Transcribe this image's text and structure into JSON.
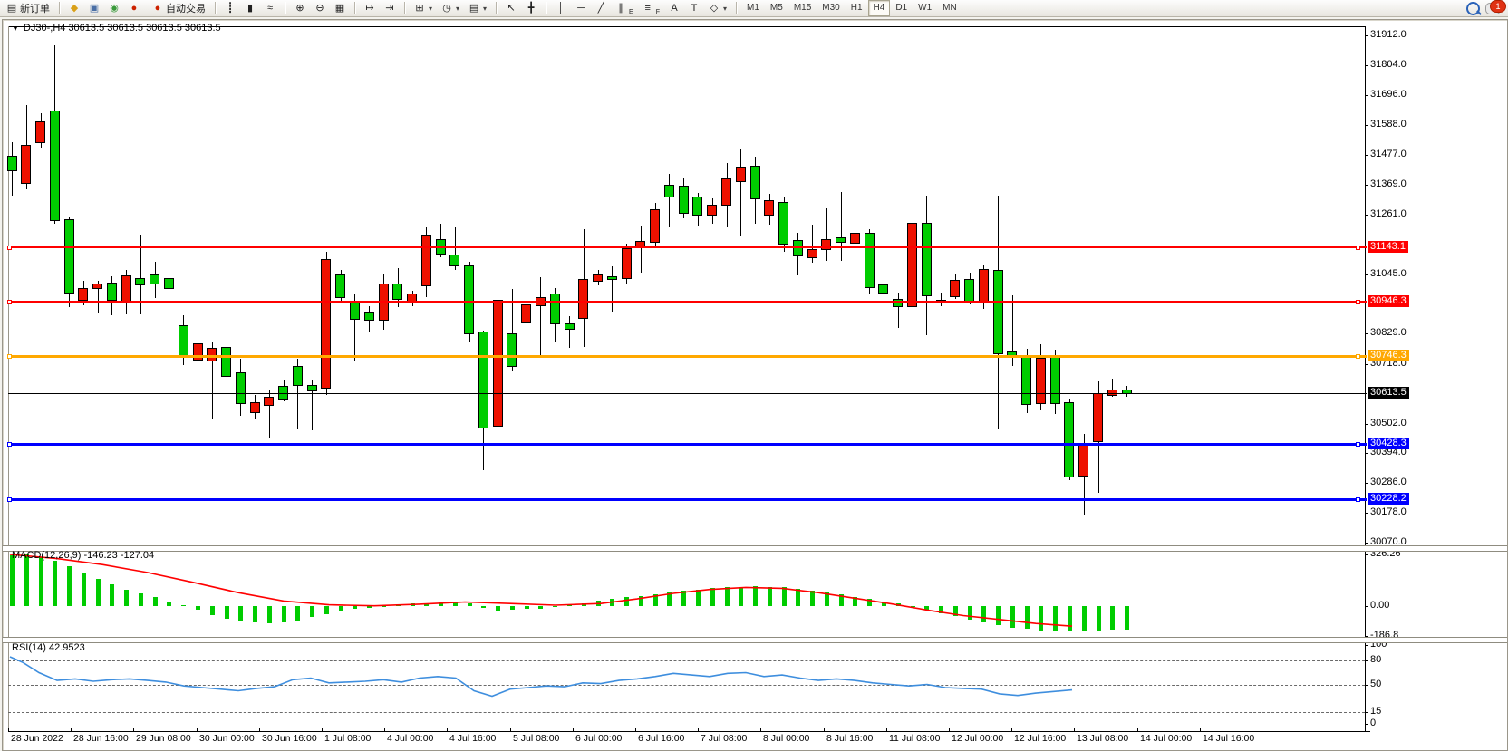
{
  "toolbar": {
    "new_order": {
      "label": "新订单",
      "glyph": "▤"
    },
    "left_icons": [
      {
        "name": "charts-icon",
        "glyph": "◆",
        "color": "#d9a018"
      },
      {
        "name": "profile-icon",
        "glyph": "▣",
        "color": "#4a6fa5"
      },
      {
        "name": "signals-icon",
        "glyph": "◉",
        "color": "#3a9a3a"
      },
      {
        "name": "autotrade-icon",
        "glyph": "●",
        "color": "#cc2200"
      }
    ],
    "autotrade_label": "自动交易",
    "chart_type_tools": [
      {
        "name": "bar-chart-icon",
        "glyph": "┋"
      },
      {
        "name": "candlestick-chart-icon",
        "glyph": "▮"
      },
      {
        "name": "line-chart-icon",
        "glyph": "≈"
      }
    ],
    "zoom_tools": [
      {
        "name": "zoom-in-icon",
        "glyph": "⊕"
      },
      {
        "name": "zoom-out-icon",
        "glyph": "⊖"
      },
      {
        "name": "tile-windows-icon",
        "glyph": "▦"
      }
    ],
    "scroll_tools": [
      {
        "name": "auto-scroll-icon",
        "glyph": "↦"
      },
      {
        "name": "chart-shift-icon",
        "glyph": "⇥"
      }
    ],
    "insert_tools": [
      {
        "name": "indicators-icon",
        "glyph": "⊞",
        "dropdown": true
      },
      {
        "name": "periods-icon",
        "glyph": "◷",
        "dropdown": true
      },
      {
        "name": "templates-icon",
        "glyph": "▤",
        "dropdown": true
      }
    ],
    "cursor_tools": [
      {
        "name": "cursor-icon",
        "glyph": "↖"
      },
      {
        "name": "crosshair-icon",
        "glyph": "╋"
      }
    ],
    "draw_tools": [
      {
        "name": "vertical-line-icon",
        "glyph": "│"
      },
      {
        "name": "horizontal-line-icon",
        "glyph": "─"
      },
      {
        "name": "trendline-icon",
        "glyph": "╱"
      },
      {
        "name": "equidistant-channel-icon",
        "glyph": "∥",
        "sub": "E"
      },
      {
        "name": "fibonacci-icon",
        "glyph": "≡",
        "sub": "F"
      },
      {
        "name": "text-icon",
        "glyph": "A"
      },
      {
        "name": "text-label-icon",
        "glyph": "T"
      },
      {
        "name": "arrows-icon",
        "glyph": "◇",
        "dropdown": true
      }
    ],
    "timeframes": [
      "M1",
      "M5",
      "M15",
      "M30",
      "H1",
      "H4",
      "D1",
      "W1",
      "MN"
    ],
    "active_timeframe": "H4",
    "chat_badge": "1"
  },
  "chart": {
    "symbol_line": "DJ30-,H4  30613.5 30613.5 30613.5 30613.5",
    "macd_label": "MACD(12,26,9) -146.23 -127.04",
    "rsi_label": "RSI(14) 42.9523"
  },
  "chart_data": {
    "type": "candlestick",
    "symbol": "DJ30-",
    "period": "H4",
    "colors": {
      "bull": "#00CD00",
      "bear": "#EE1100",
      "wick": "#000000",
      "hline_red": "#FF0000",
      "hline_orange": "#FFA800",
      "hline_blue": "#0000FF",
      "current_price_line": "#000000",
      "macd_bar": "#00CC00",
      "macd_signal": "#FF0000",
      "rsi_line": "#3E8EDE"
    },
    "price_axis": {
      "min": 30070.0,
      "max": 31912.0,
      "ticks": [
        "31912.0",
        "31804.0",
        "31696.0",
        "31588.0",
        "31477.0",
        "31369.0",
        "31261.0",
        "31045.0",
        "30829.0",
        "30718.0",
        "30502.0",
        "30394.0",
        "30286.0",
        "30178.0",
        "30070.0"
      ],
      "tick_values": [
        31912.0,
        31804.0,
        31696.0,
        31588.0,
        31477.0,
        31369.0,
        31261.0,
        31045.0,
        30829.0,
        30718.0,
        30502.0,
        30394.0,
        30286.0,
        30178.0,
        30070.0
      ]
    },
    "hlines": [
      {
        "price": 31143.1,
        "label": "31143.1",
        "color": "#FF0000",
        "thickness": 2
      },
      {
        "price": 30946.3,
        "label": "30946.3",
        "color": "#FF0000",
        "thickness": 2
      },
      {
        "price": 30746.3,
        "label": "30746.3",
        "color": "#FFA800",
        "thickness": 3
      },
      {
        "price": 30613.5,
        "label": "30613.5",
        "color": "#000000",
        "thickness": 1,
        "current": true
      },
      {
        "price": 30428.3,
        "label": "30428.3",
        "color": "#0000FF",
        "thickness": 3
      },
      {
        "price": 30228.2,
        "label": "30228.2",
        "color": "#0000FF",
        "thickness": 3
      }
    ],
    "candles": [
      [
        "g",
        31475,
        31420,
        31525,
        31330
      ],
      [
        "r",
        31515,
        31375,
        31660,
        31355
      ],
      [
        "r",
        31600,
        31520,
        31630,
        31505
      ],
      [
        "g",
        31640,
        31240,
        31875,
        31228
      ],
      [
        "g",
        31245,
        30975,
        31255,
        30925
      ],
      [
        "r",
        30995,
        30950,
        31020,
        30930
      ],
      [
        "r",
        31010,
        30990,
        31022,
        30902
      ],
      [
        "g",
        31015,
        30950,
        31037,
        30897
      ],
      [
        "r",
        31040,
        30942,
        31060,
        30900
      ],
      [
        "g",
        31030,
        31005,
        31190,
        30902
      ],
      [
        "g",
        31045,
        31010,
        31090,
        30960
      ],
      [
        "g",
        31032,
        30992,
        31062,
        30947
      ],
      [
        "g",
        30860,
        30744,
        30895,
        30715
      ],
      [
        "r",
        30794,
        30731,
        30820,
        30662
      ],
      [
        "r",
        30777,
        30728,
        30800,
        30517
      ],
      [
        "g",
        30781,
        30672,
        30810,
        30590
      ],
      [
        "g",
        30689,
        30573,
        30738,
        30530
      ],
      [
        "r",
        30580,
        30541,
        30607,
        30517
      ],
      [
        "r",
        30600,
        30567,
        30625,
        30452
      ],
      [
        "g",
        30639,
        30590,
        30662,
        30584
      ],
      [
        "g",
        30711,
        30639,
        30738,
        30481
      ],
      [
        "g",
        30642,
        30620,
        30660,
        30480
      ],
      [
        "r",
        31100,
        30630,
        31126,
        30607
      ],
      [
        "g",
        31043,
        30958,
        31060,
        30938
      ],
      [
        "g",
        30942,
        30879,
        30975,
        30728
      ],
      [
        "g",
        30909,
        30876,
        30928,
        30833
      ],
      [
        "r",
        31011,
        30876,
        31043,
        30843
      ],
      [
        "g",
        31011,
        30952,
        31066,
        30925
      ],
      [
        "r",
        30975,
        30945,
        30985,
        30930
      ],
      [
        "r",
        31188,
        31001,
        31215,
        30962
      ],
      [
        "g",
        31172,
        31116,
        31228,
        31106
      ],
      [
        "g",
        31116,
        31073,
        31215,
        31060
      ],
      [
        "g",
        31076,
        30827,
        31090,
        30797
      ],
      [
        "g",
        30836,
        30484,
        30840,
        30333
      ],
      [
        "r",
        30952,
        30491,
        30985,
        30458
      ],
      [
        "g",
        30830,
        30708,
        30991,
        30695
      ],
      [
        "r",
        30936,
        30870,
        31043,
        30843
      ],
      [
        "r",
        30962,
        30928,
        31034,
        30744
      ],
      [
        "g",
        30975,
        30863,
        30995,
        30797
      ],
      [
        "g",
        30866,
        30843,
        30892,
        30777
      ],
      [
        "r",
        31027,
        30882,
        31208,
        30781
      ],
      [
        "r",
        31043,
        31017,
        31060,
        31004
      ],
      [
        "g",
        31037,
        31024,
        31073,
        30909
      ],
      [
        "r",
        31139,
        31027,
        31155,
        31007
      ],
      [
        "r",
        31165,
        31139,
        31221,
        31050
      ],
      [
        "r",
        31280,
        31158,
        31303,
        31142
      ],
      [
        "g",
        31369,
        31323,
        31409,
        31215
      ],
      [
        "g",
        31366,
        31264,
        31392,
        31247
      ],
      [
        "g",
        31327,
        31257,
        31340,
        31221
      ],
      [
        "r",
        31297,
        31257,
        31320,
        31227
      ],
      [
        "r",
        31392,
        31294,
        31448,
        31215
      ],
      [
        "r",
        31435,
        31379,
        31497,
        31185
      ],
      [
        "g",
        31438,
        31317,
        31471,
        31228
      ],
      [
        "r",
        31313,
        31257,
        31336,
        31224
      ],
      [
        "g",
        31307,
        31152,
        31327,
        31126
      ],
      [
        "g",
        31169,
        31109,
        31195,
        31040
      ],
      [
        "r",
        31136,
        31103,
        31224,
        31086
      ],
      [
        "r",
        31172,
        31132,
        31284,
        31093
      ],
      [
        "g",
        31178,
        31158,
        31343,
        31093
      ],
      [
        "r",
        31195,
        31155,
        31205,
        31139
      ],
      [
        "g",
        31195,
        30994,
        31208,
        30975
      ],
      [
        "g",
        31007,
        30975,
        31027,
        30876
      ],
      [
        "g",
        30955,
        30925,
        30978,
        30850
      ],
      [
        "r",
        31231,
        30925,
        31320,
        30889
      ],
      [
        "g",
        31231,
        30965,
        31330,
        30823
      ],
      [
        "g",
        30952,
        30942,
        30978,
        30930
      ],
      [
        "r",
        31024,
        30962,
        31043,
        30955
      ],
      [
        "g",
        31027,
        30942,
        31050,
        30936
      ],
      [
        "r",
        31063,
        30942,
        31080,
        30919
      ],
      [
        "g",
        31060,
        30754,
        31330,
        30481
      ],
      [
        "g",
        30764,
        30744,
        30968,
        30711
      ],
      [
        "g",
        30751,
        30570,
        30774,
        30541
      ],
      [
        "r",
        30741,
        30574,
        30790,
        30551
      ],
      [
        "g",
        30744,
        30574,
        30771,
        30538
      ],
      [
        "g",
        30580,
        30307,
        30593,
        30297
      ],
      [
        "r",
        30425,
        30310,
        30464,
        30169
      ],
      [
        "r",
        30613,
        30435,
        30656,
        30251
      ],
      [
        "r",
        30626,
        30603,
        30666,
        30600
      ],
      [
        "g",
        30626,
        30610,
        30640,
        30600
      ]
    ],
    "macd": {
      "label": "MACD(12,26,9)",
      "main_value": -146.23,
      "signal_value": -127.04,
      "axis": [
        "326.26",
        "0.00",
        "-186.8"
      ],
      "bars": [
        320,
        325,
        310,
        285,
        250,
        210,
        170,
        135,
        105,
        80,
        55,
        30,
        5,
        -25,
        -55,
        -80,
        -95,
        -105,
        -110,
        -105,
        -90,
        -70,
        -50,
        -35,
        -20,
        -10,
        0,
        10,
        15,
        20,
        25,
        25,
        20,
        -10,
        -30,
        -25,
        -20,
        -15,
        -5,
        5,
        20,
        35,
        45,
        55,
        65,
        75,
        85,
        95,
        105,
        112,
        118,
        122,
        124,
        122,
        118,
        110,
        100,
        88,
        75,
        60,
        45,
        30,
        15,
        -5,
        -25,
        -45,
        -65,
        -85,
        -105,
        -120,
        -135,
        -145,
        -152,
        -157,
        -160,
        -158,
        -152,
        -148,
        -146
      ],
      "signal": [
        [
          8,
          326
        ],
        [
          60,
          300
        ],
        [
          110,
          262
        ],
        [
          160,
          212
        ],
        [
          210,
          150
        ],
        [
          260,
          85
        ],
        [
          310,
          32
        ],
        [
          360,
          8
        ],
        [
          410,
          2
        ],
        [
          460,
          12
        ],
        [
          510,
          26
        ],
        [
          560,
          16
        ],
        [
          610,
          6
        ],
        [
          660,
          16
        ],
        [
          700,
          45
        ],
        [
          740,
          80
        ],
        [
          780,
          105
        ],
        [
          820,
          118
        ],
        [
          860,
          112
        ],
        [
          900,
          85
        ],
        [
          940,
          50
        ],
        [
          980,
          15
        ],
        [
          1020,
          -25
        ],
        [
          1060,
          -60
        ],
        [
          1100,
          -85
        ],
        [
          1140,
          -110
        ],
        [
          1180,
          -127
        ]
      ]
    },
    "rsi": {
      "label": "RSI(14)",
      "value": 42.9523,
      "axis": [
        "100",
        "80",
        "50",
        "15",
        "0"
      ],
      "axis_values": [
        100,
        80,
        50,
        15,
        0
      ],
      "levels": [
        80,
        50,
        15
      ],
      "line": [
        [
          8,
          85
        ],
        [
          22,
          78
        ],
        [
          40,
          65
        ],
        [
          60,
          55
        ],
        [
          80,
          57
        ],
        [
          100,
          54
        ],
        [
          120,
          56
        ],
        [
          140,
          57
        ],
        [
          160,
          55
        ],
        [
          180,
          53
        ],
        [
          200,
          48
        ],
        [
          220,
          46
        ],
        [
          240,
          44
        ],
        [
          260,
          42
        ],
        [
          280,
          45
        ],
        [
          300,
          47
        ],
        [
          320,
          56
        ],
        [
          340,
          58
        ],
        [
          360,
          52
        ],
        [
          380,
          53
        ],
        [
          400,
          54
        ],
        [
          420,
          56
        ],
        [
          440,
          53
        ],
        [
          460,
          58
        ],
        [
          480,
          60
        ],
        [
          500,
          58
        ],
        [
          520,
          42
        ],
        [
          540,
          35
        ],
        [
          560,
          44
        ],
        [
          580,
          46
        ],
        [
          600,
          48
        ],
        [
          620,
          47
        ],
        [
          640,
          52
        ],
        [
          660,
          51
        ],
        [
          680,
          55
        ],
        [
          700,
          57
        ],
        [
          720,
          60
        ],
        [
          740,
          64
        ],
        [
          760,
          62
        ],
        [
          780,
          60
        ],
        [
          800,
          64
        ],
        [
          820,
          65
        ],
        [
          840,
          60
        ],
        [
          860,
          62
        ],
        [
          880,
          58
        ],
        [
          900,
          55
        ],
        [
          920,
          57
        ],
        [
          940,
          55
        ],
        [
          960,
          52
        ],
        [
          980,
          50
        ],
        [
          1000,
          48
        ],
        [
          1020,
          50
        ],
        [
          1040,
          46
        ],
        [
          1060,
          45
        ],
        [
          1080,
          44
        ],
        [
          1100,
          38
        ],
        [
          1120,
          36
        ],
        [
          1140,
          39
        ],
        [
          1160,
          41
        ],
        [
          1180,
          43
        ]
      ]
    },
    "time_labels": [
      "28 Jun 2022",
      "28 Jun 16:00",
      "29 Jun 08:00",
      "30 Jun 00:00",
      "30 Jun 16:00",
      "1 Jul 08:00",
      "4 Jul 00:00",
      "4 Jul 16:00",
      "5 Jul 08:00",
      "6 Jul 00:00",
      "6 Jul 16:00",
      "7 Jul 08:00",
      "8 Jul 00:00",
      "8 Jul 16:00",
      "11 Jul 08:00",
      "12 Jul 00:00",
      "12 Jul 16:00",
      "13 Jul 08:00",
      "14 Jul 00:00",
      "14 Jul 16:00"
    ]
  }
}
